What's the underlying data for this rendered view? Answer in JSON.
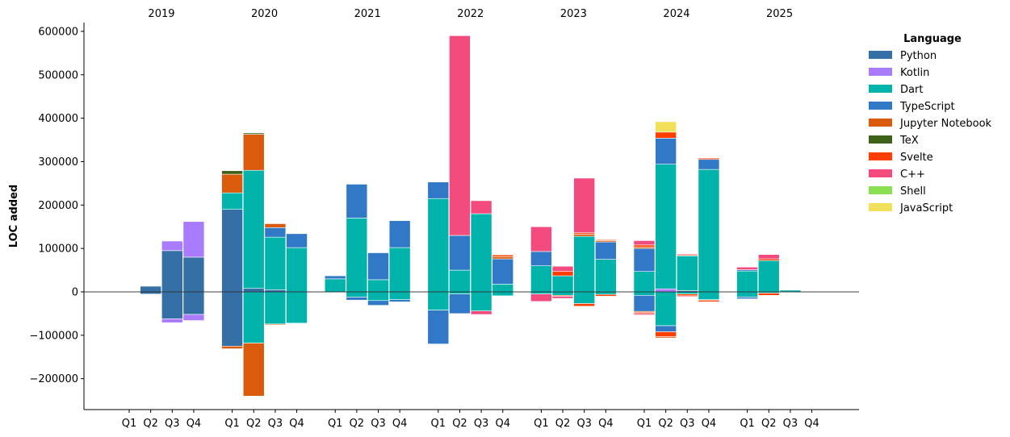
{
  "chart_data": {
    "type": "bar",
    "stacked": true,
    "ylabel": "LOC added",
    "ylim": [
      -260000,
      620000
    ],
    "yticks": [
      -200000,
      -100000,
      0,
      100000,
      200000,
      300000,
      400000,
      500000,
      600000
    ],
    "ytick_labels": [
      "−200000",
      "−100000",
      "0",
      "100000",
      "200000",
      "300000",
      "400000",
      "500000",
      "600000"
    ],
    "years": [
      "2019",
      "2020",
      "2021",
      "2022",
      "2023",
      "2024",
      "2025"
    ],
    "quarters": [
      "Q1",
      "Q2",
      "Q3",
      "Q4"
    ],
    "legend": {
      "title": "Language",
      "position": "right",
      "entries": [
        "Python",
        "Kotlin",
        "Dart",
        "TypeScript",
        "Jupyter Notebook",
        "TeX",
        "Svelte",
        "C++",
        "Shell",
        "JavaScript"
      ]
    },
    "colors": {
      "Python": "#3470a6",
      "Kotlin": "#a97bff",
      "Dart": "#00b4ab",
      "TypeScript": "#3178c6",
      "Jupyter Notebook": "#da5b0b",
      "TeX": "#3d6117",
      "Svelte": "#ff3e00",
      "C++": "#f34b7d",
      "Shell": "#89e051",
      "JavaScript": "#f1e05a"
    },
    "bars": [
      {
        "year": "2019",
        "quarter": "Q2",
        "pos": [
          [
            "Python",
            13000
          ]
        ],
        "neg": [
          [
            "Python",
            -5000
          ]
        ]
      },
      {
        "year": "2019",
        "quarter": "Q3",
        "pos": [
          [
            "Python",
            95000
          ],
          [
            "Kotlin",
            22000
          ]
        ],
        "neg": [
          [
            "Python",
            -62000
          ],
          [
            "Kotlin",
            -9000
          ]
        ]
      },
      {
        "year": "2019",
        "quarter": "Q4",
        "pos": [
          [
            "Python",
            80000
          ],
          [
            "Kotlin",
            82000
          ]
        ],
        "neg": [
          [
            "Python",
            -52000
          ],
          [
            "Kotlin",
            -14000
          ]
        ]
      },
      {
        "year": "2020",
        "quarter": "Q1",
        "pos": [
          [
            "Python",
            190000
          ],
          [
            "Dart",
            38000
          ],
          [
            "Jupyter Notebook",
            43000
          ],
          [
            "TeX",
            8000
          ]
        ],
        "neg": [
          [
            "Python",
            -125000
          ],
          [
            "Jupyter Notebook",
            -6000
          ]
        ]
      },
      {
        "year": "2020",
        "quarter": "Q2",
        "pos": [
          [
            "Python",
            8000
          ],
          [
            "Dart",
            272000
          ],
          [
            "Jupyter Notebook",
            83000
          ],
          [
            "TeX",
            3000
          ]
        ],
        "neg": [
          [
            "Dart",
            -118000
          ],
          [
            "Jupyter Notebook",
            -122000
          ]
        ]
      },
      {
        "year": "2020",
        "quarter": "Q3",
        "pos": [
          [
            "Python",
            5000
          ],
          [
            "Dart",
            121000
          ],
          [
            "TypeScript",
            22000
          ],
          [
            "Jupyter Notebook",
            9000
          ]
        ],
        "neg": [
          [
            "Dart",
            -74000
          ],
          [
            "Jupyter Notebook",
            -2000
          ]
        ]
      },
      {
        "year": "2020",
        "quarter": "Q4",
        "pos": [
          [
            "Dart",
            102000
          ],
          [
            "TypeScript",
            32000
          ]
        ],
        "neg": [
          [
            "Dart",
            -72000
          ]
        ]
      },
      {
        "year": "2021",
        "quarter": "Q1",
        "pos": [
          [
            "Dart",
            30000
          ],
          [
            "TypeScript",
            7000
          ]
        ],
        "neg": []
      },
      {
        "year": "2021",
        "quarter": "Q2",
        "pos": [
          [
            "Dart",
            170000
          ],
          [
            "TypeScript",
            78000
          ]
        ],
        "neg": [
          [
            "Dart",
            -12000
          ],
          [
            "TypeScript",
            -7000
          ]
        ]
      },
      {
        "year": "2021",
        "quarter": "Q3",
        "pos": [
          [
            "Dart",
            28000
          ],
          [
            "TypeScript",
            62000
          ]
        ],
        "neg": [
          [
            "Dart",
            -20000
          ],
          [
            "TypeScript",
            -11000
          ]
        ]
      },
      {
        "year": "2021",
        "quarter": "Q4",
        "pos": [
          [
            "Dart",
            102000
          ],
          [
            "TypeScript",
            62000
          ]
        ],
        "neg": [
          [
            "Dart",
            -18000
          ],
          [
            "TypeScript",
            -5000
          ]
        ]
      },
      {
        "year": "2022",
        "quarter": "Q1",
        "pos": [
          [
            "Dart",
            215000
          ],
          [
            "TypeScript",
            38000
          ]
        ],
        "neg": [
          [
            "Dart",
            -42000
          ],
          [
            "TypeScript",
            -78000
          ]
        ]
      },
      {
        "year": "2022",
        "quarter": "Q2",
        "pos": [
          [
            "Dart",
            50000
          ],
          [
            "TypeScript",
            80000
          ],
          [
            "C++",
            460000
          ]
        ],
        "neg": [
          [
            "Dart",
            -5000
          ],
          [
            "TypeScript",
            -45000
          ]
        ]
      },
      {
        "year": "2022",
        "quarter": "Q3",
        "pos": [
          [
            "Dart",
            180000
          ],
          [
            "C++",
            30000
          ]
        ],
        "neg": [
          [
            "Dart",
            -44000
          ],
          [
            "C++",
            -8000
          ]
        ]
      },
      {
        "year": "2022",
        "quarter": "Q4",
        "pos": [
          [
            "Dart",
            18000
          ],
          [
            "TypeScript",
            58000
          ],
          [
            "Jupyter Notebook",
            5000
          ],
          [
            "Svelte",
            4000
          ]
        ],
        "neg": [
          [
            "Dart",
            -9000
          ]
        ]
      },
      {
        "year": "2023",
        "quarter": "Q1",
        "pos": [
          [
            "Dart",
            60000
          ],
          [
            "TypeScript",
            33000
          ],
          [
            "C++",
            57000
          ]
        ],
        "neg": [
          [
            "Dart",
            -5000
          ],
          [
            "C++",
            -17000
          ]
        ]
      },
      {
        "year": "2023",
        "quarter": "Q2",
        "pos": [
          [
            "Dart",
            37000
          ],
          [
            "Svelte",
            10000
          ],
          [
            "C++",
            12000
          ]
        ],
        "neg": [
          [
            "Dart",
            -8000
          ],
          [
            "Svelte",
            -2000
          ],
          [
            "C++",
            -5000
          ]
        ]
      },
      {
        "year": "2023",
        "quarter": "Q3",
        "pos": [
          [
            "Dart",
            128000
          ],
          [
            "Jupyter Notebook",
            5000
          ],
          [
            "Svelte",
            3000
          ],
          [
            "C++",
            126000
          ]
        ],
        "neg": [
          [
            "Dart",
            -27000
          ],
          [
            "Svelte",
            -6000
          ]
        ]
      },
      {
        "year": "2023",
        "quarter": "Q4",
        "pos": [
          [
            "Dart",
            75000
          ],
          [
            "TypeScript",
            40000
          ],
          [
            "Jupyter Notebook",
            3000
          ],
          [
            "Svelte",
            2000
          ]
        ],
        "neg": [
          [
            "Dart",
            -6000
          ],
          [
            "Svelte",
            -4000
          ]
        ]
      },
      {
        "year": "2024",
        "quarter": "Q1",
        "pos": [
          [
            "Dart",
            47000
          ],
          [
            "TypeScript",
            53000
          ],
          [
            "Jupyter Notebook",
            3000
          ],
          [
            "Svelte",
            5000
          ],
          [
            "C++",
            10000
          ]
        ],
        "neg": [
          [
            "Dart",
            -8000
          ],
          [
            "TypeScript",
            -37000
          ],
          [
            "Jupyter Notebook",
            -2000
          ],
          [
            "Svelte",
            -3000
          ],
          [
            "C++",
            -3000
          ]
        ]
      },
      {
        "year": "2024",
        "quarter": "Q2",
        "pos": [
          [
            "Kotlin",
            7000
          ],
          [
            "Dart",
            287000
          ],
          [
            "TypeScript",
            60000
          ],
          [
            "Svelte",
            14000
          ],
          [
            "JavaScript",
            24000
          ]
        ],
        "neg": [
          [
            "Dart",
            -78000
          ],
          [
            "TypeScript",
            -14000
          ],
          [
            "Svelte",
            -11000
          ],
          [
            "Jupyter Notebook",
            -3000
          ]
        ]
      },
      {
        "year": "2024",
        "quarter": "Q3",
        "pos": [
          [
            "Python",
            3000
          ],
          [
            "Dart",
            80000
          ],
          [
            "Svelte",
            2000
          ],
          [
            "C++",
            2000
          ]
        ],
        "neg": [
          [
            "Dart",
            -5000
          ],
          [
            "Svelte",
            -4000
          ],
          [
            "C++",
            -2000
          ]
        ]
      },
      {
        "year": "2024",
        "quarter": "Q4",
        "pos": [
          [
            "Dart",
            282000
          ],
          [
            "TypeScript",
            23000
          ],
          [
            "Svelte",
            3000
          ]
        ],
        "neg": [
          [
            "Dart",
            -18000
          ],
          [
            "Jupyter Notebook",
            -2000
          ],
          [
            "Svelte",
            -3000
          ]
        ]
      },
      {
        "year": "2025",
        "quarter": "Q1",
        "pos": [
          [
            "Dart",
            48000
          ],
          [
            "TypeScript",
            3000
          ],
          [
            "C++",
            6000
          ]
        ],
        "neg": [
          [
            "Dart",
            -12000
          ],
          [
            "TypeScript",
            -4000
          ]
        ]
      },
      {
        "year": "2025",
        "quarter": "Q2",
        "pos": [
          [
            "Dart",
            72000
          ],
          [
            "Svelte",
            4000
          ],
          [
            "C++",
            10000
          ]
        ],
        "neg": [
          [
            "Dart",
            -3000
          ],
          [
            "Svelte",
            -5000
          ]
        ]
      },
      {
        "year": "2025",
        "quarter": "Q3",
        "pos": [
          [
            "Dart",
            4000
          ]
        ],
        "neg": [
          [
            "Dart",
            -1000
          ]
        ]
      }
    ]
  }
}
